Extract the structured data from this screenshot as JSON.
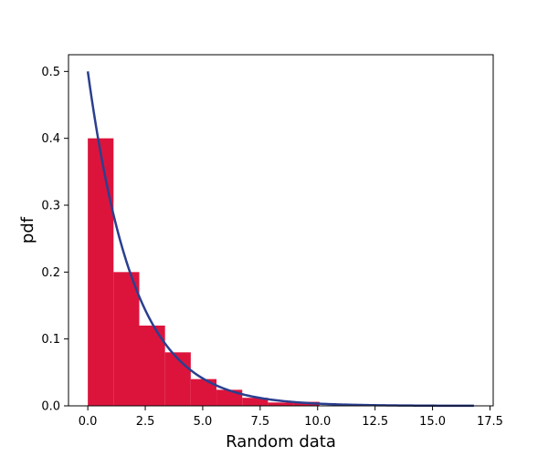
{
  "chart_data": {
    "type": "bar",
    "xlabel": "Random data",
    "ylabel": "pdf",
    "xlim": [
      -0.84,
      17.64
    ],
    "ylim": [
      0,
      0.525
    ],
    "xticks": [
      0.0,
      2.5,
      5.0,
      7.5,
      10.0,
      12.5,
      15.0,
      17.5
    ],
    "xtick_labels": [
      "0.0",
      "2.5",
      "5.0",
      "7.5",
      "10.0",
      "12.5",
      "15.0",
      "17.5"
    ],
    "yticks": [
      0.0,
      0.1,
      0.2,
      0.3,
      0.4,
      0.5
    ],
    "ytick_labels": [
      "0.0",
      "0.1",
      "0.2",
      "0.3",
      "0.4",
      "0.5"
    ],
    "grid": false,
    "histogram": {
      "color": "#dc143c",
      "bins": [
        {
          "x0": 0.0,
          "x1": 1.12,
          "value": 0.4
        },
        {
          "x0": 1.12,
          "x1": 2.24,
          "value": 0.2
        },
        {
          "x0": 2.24,
          "x1": 3.36,
          "value": 0.12
        },
        {
          "x0": 3.36,
          "x1": 4.48,
          "value": 0.08
        },
        {
          "x0": 4.48,
          "x1": 5.6,
          "value": 0.04
        },
        {
          "x0": 5.6,
          "x1": 6.72,
          "value": 0.024
        },
        {
          "x0": 6.72,
          "x1": 7.84,
          "value": 0.012
        },
        {
          "x0": 7.84,
          "x1": 8.96,
          "value": 0.005
        },
        {
          "x0": 8.96,
          "x1": 10.08,
          "value": 0.006
        },
        {
          "x0": 10.08,
          "x1": 11.2,
          "value": 0.0
        },
        {
          "x0": 11.2,
          "x1": 12.32,
          "value": 0.0
        },
        {
          "x0": 12.32,
          "x1": 13.44,
          "value": 0.0
        },
        {
          "x0": 13.44,
          "x1": 14.56,
          "value": 0.0
        },
        {
          "x0": 14.56,
          "x1": 15.68,
          "value": 0.0
        },
        {
          "x0": 15.68,
          "x1": 16.8,
          "value": 0.001
        }
      ]
    },
    "curve": {
      "type": "line",
      "color": "#2b3f8f",
      "function": "0.5*exp(-0.5*x)",
      "x_range": [
        0,
        16.8
      ]
    }
  }
}
